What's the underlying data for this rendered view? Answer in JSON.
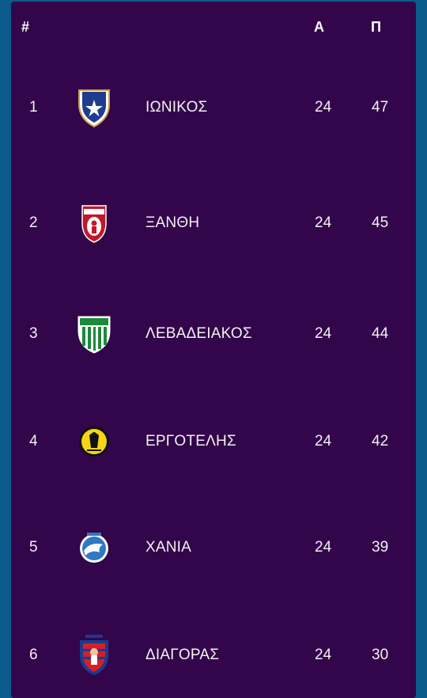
{
  "table": {
    "headers": {
      "rank": "#",
      "played": "Α",
      "points": "Π"
    },
    "rows": [
      {
        "rank": "1",
        "team": "ΙΩΝΙΚΟΣ",
        "played": "24",
        "points": "47",
        "logo": "ionikos-crest-icon"
      },
      {
        "rank": "2",
        "team": "ΞΑΝΘΗ",
        "played": "24",
        "points": "45",
        "logo": "xanthi-crest-icon"
      },
      {
        "rank": "3",
        "team": "ΛΕΒΑΔΕΙΑΚΟΣ",
        "played": "24",
        "points": "44",
        "logo": "levadiakos-crest-icon"
      },
      {
        "rank": "4",
        "team": "ΕΡΓΟΤΕΛΗΣ",
        "played": "24",
        "points": "42",
        "logo": "ergotelis-crest-icon"
      },
      {
        "rank": "5",
        "team": "ΧΑΝΙΑ",
        "played": "24",
        "points": "39",
        "logo": "chania-crest-icon"
      },
      {
        "rank": "6",
        "team": "ΔΙΑΓΟΡΑΣ",
        "played": "24",
        "points": "30",
        "logo": "diagoras-crest-icon"
      }
    ]
  },
  "colors": {
    "page_background": "#0b5a8c",
    "panel_background": "#33054a",
    "text": "#ffffff"
  }
}
